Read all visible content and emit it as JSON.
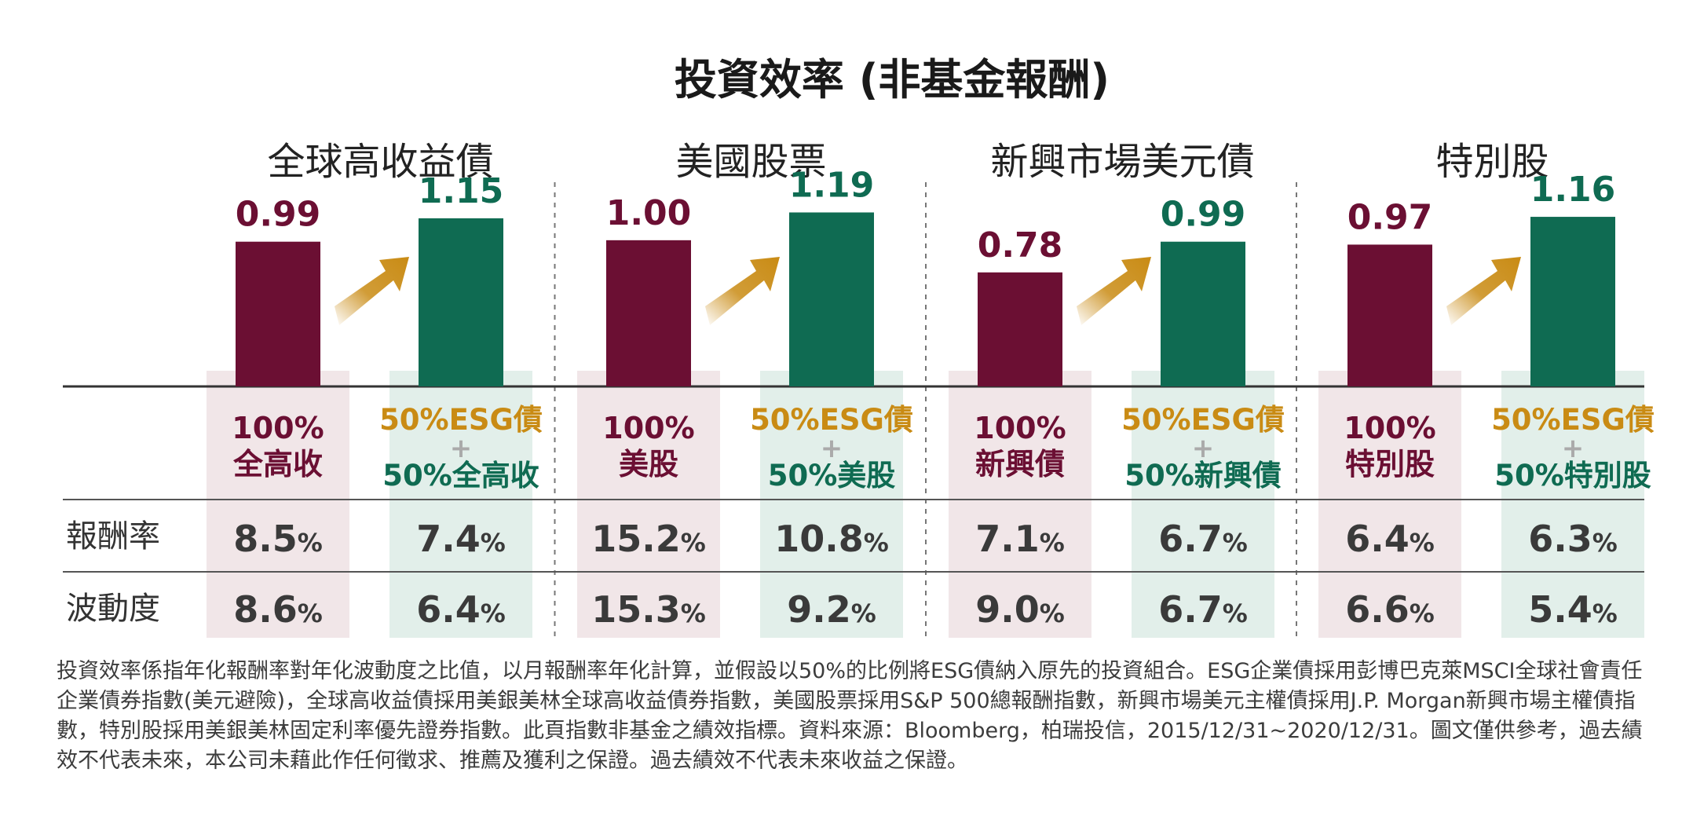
{
  "colors": {
    "base": "#6b0f33",
    "esg": "#0f6b52",
    "arrow": "#c98b14",
    "base_panel": "#f1e6e8",
    "esg_panel": "#e2efea",
    "value_text": "#3a3a3a",
    "rule": "#555555",
    "divider": "#777777"
  },
  "chart_data": {
    "type": "bar",
    "title": "投資效率 (非基金報酬)",
    "ylim": [
      0,
      1.3
    ],
    "grid": false,
    "legend": "none",
    "series_names": [
      "base",
      "esg"
    ],
    "groups": [
      {
        "category": "全球高收益債",
        "base": {
          "value": 0.99,
          "label": "0.99",
          "lines": [
            "100%",
            "全高收"
          ],
          "return": "8.5",
          "volatility": "8.6"
        },
        "esg": {
          "value": 1.15,
          "label": "1.15",
          "lines": [
            "50%ESG債",
            "+",
            "50%全高收"
          ],
          "return": "7.4",
          "volatility": "6.4"
        }
      },
      {
        "category": "美國股票",
        "base": {
          "value": 1.0,
          "label": "1.00",
          "lines": [
            "100%",
            "美股"
          ],
          "return": "15.2",
          "volatility": "15.3"
        },
        "esg": {
          "value": 1.19,
          "label": "1.19",
          "lines": [
            "50%ESG債",
            "+",
            "50%美股"
          ],
          "return": "10.8",
          "volatility": "9.2"
        }
      },
      {
        "category": "新興市場美元債",
        "base": {
          "value": 0.78,
          "label": "0.78",
          "lines": [
            "100%",
            "新興債"
          ],
          "return": "7.1",
          "volatility": "9.0"
        },
        "esg": {
          "value": 0.99,
          "label": "0.99",
          "lines": [
            "50%ESG債",
            "+",
            "50%新興債"
          ],
          "return": "6.7",
          "volatility": "6.7"
        }
      },
      {
        "category": "特別股",
        "base": {
          "value": 0.97,
          "label": "0.97",
          "lines": [
            "100%",
            "特別股"
          ],
          "return": "6.4",
          "volatility": "6.6"
        },
        "esg": {
          "value": 1.16,
          "label": "1.16",
          "lines": [
            "50%ESG債",
            "+",
            "50%特別股"
          ],
          "return": "6.3",
          "volatility": "5.4"
        }
      }
    ],
    "row_labels": {
      "return": "報酬率",
      "volatility": "波動度"
    },
    "unit": "%"
  },
  "footnote": "投資效率係指年化報酬率對年化波動度之比值，以月報酬率年化計算，並假設以50%的比例將ESG債納入原先的投資組合。ESG企業債採用彭博巴克萊MSCI全球社會責任企業債券指數(美元避險)，全球高收益債採用美銀美林全球高收益債券指數，美國股票採用S&P 500總報酬指數，新興市場美元主權債採用J.P. Morgan新興市場主權債指數，特別股採用美銀美林固定利率優先證券指數。此頁指數非基金之績效指標。資料來源：Bloomberg，柏瑞投信，2015/12/31~2020/12/31。圖文僅供參考，過去績效不代表未來，本公司未藉此作任何徵求、推薦及獲利之保證。過去績效不代表未來收益之保證。"
}
